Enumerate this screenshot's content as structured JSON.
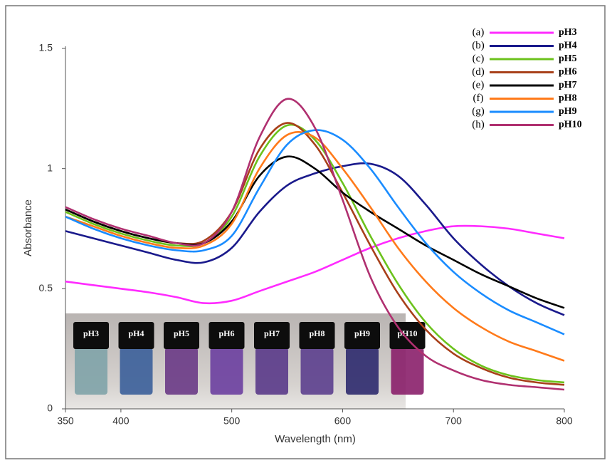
{
  "chart_data": {
    "type": "line",
    "x_label": "Wavelength (nm)",
    "y_label": "Absorbance",
    "x": [
      350,
      375,
      400,
      425,
      450,
      475,
      500,
      525,
      550,
      575,
      600,
      625,
      650,
      675,
      700,
      725,
      750,
      775,
      800
    ],
    "xlim": [
      350,
      800
    ],
    "xticks": [
      350,
      400,
      500,
      600,
      700,
      800
    ],
    "ylim": [
      0,
      1.5
    ],
    "yticks": [
      0,
      0.5,
      1,
      1.5
    ],
    "series": [
      {
        "letter": "(a)",
        "name": "pH3",
        "color": "#ff2bff",
        "values": [
          0.53,
          0.515,
          0.5,
          0.485,
          0.465,
          0.44,
          0.45,
          0.49,
          0.53,
          0.57,
          0.62,
          0.67,
          0.71,
          0.74,
          0.76,
          0.76,
          0.75,
          0.73,
          0.71
        ]
      },
      {
        "letter": "(b)",
        "name": "pH4",
        "color": "#1a1a8c",
        "values": [
          0.74,
          0.71,
          0.68,
          0.65,
          0.62,
          0.61,
          0.67,
          0.82,
          0.93,
          0.98,
          1.01,
          1.02,
          0.97,
          0.85,
          0.71,
          0.6,
          0.51,
          0.44,
          0.39
        ]
      },
      {
        "letter": "(c)",
        "name": "pH5",
        "color": "#6cc21c",
        "values": [
          0.82,
          0.77,
          0.73,
          0.7,
          0.68,
          0.69,
          0.8,
          1.05,
          1.18,
          1.12,
          0.94,
          0.72,
          0.52,
          0.36,
          0.25,
          0.18,
          0.14,
          0.12,
          0.11
        ]
      },
      {
        "letter": "(d)",
        "name": "pH6",
        "color": "#a8401a",
        "values": [
          0.83,
          0.78,
          0.74,
          0.71,
          0.69,
          0.7,
          0.82,
          1.08,
          1.19,
          1.1,
          0.9,
          0.68,
          0.48,
          0.33,
          0.23,
          0.17,
          0.13,
          0.11,
          0.1
        ]
      },
      {
        "letter": "(e)",
        "name": "pH7",
        "color": "#000000",
        "values": [
          0.83,
          0.78,
          0.74,
          0.71,
          0.69,
          0.69,
          0.78,
          0.97,
          1.05,
          1.0,
          0.9,
          0.82,
          0.75,
          0.68,
          0.62,
          0.56,
          0.51,
          0.46,
          0.42
        ]
      },
      {
        "letter": "(f)",
        "name": "pH8",
        "color": "#ff7a1a",
        "values": [
          0.8,
          0.76,
          0.72,
          0.69,
          0.67,
          0.68,
          0.77,
          1.0,
          1.14,
          1.13,
          1.0,
          0.84,
          0.67,
          0.53,
          0.42,
          0.34,
          0.28,
          0.24,
          0.2
        ]
      },
      {
        "letter": "(g)",
        "name": "pH9",
        "color": "#1a8cff",
        "values": [
          0.8,
          0.75,
          0.71,
          0.68,
          0.66,
          0.66,
          0.72,
          0.92,
          1.1,
          1.16,
          1.12,
          1.0,
          0.84,
          0.69,
          0.57,
          0.48,
          0.41,
          0.36,
          0.31
        ]
      },
      {
        "letter": "(h)",
        "name": "pH10",
        "color": "#b03070",
        "values": [
          0.84,
          0.79,
          0.75,
          0.72,
          0.69,
          0.69,
          0.82,
          1.13,
          1.29,
          1.17,
          0.87,
          0.55,
          0.34,
          0.22,
          0.16,
          0.12,
          0.1,
          0.09,
          0.08
        ]
      }
    ],
    "inset": {
      "labels": [
        "pH3",
        "pH4",
        "pH5",
        "pH6",
        "pH7",
        "pH8",
        "pH9",
        "pH10"
      ]
    }
  }
}
